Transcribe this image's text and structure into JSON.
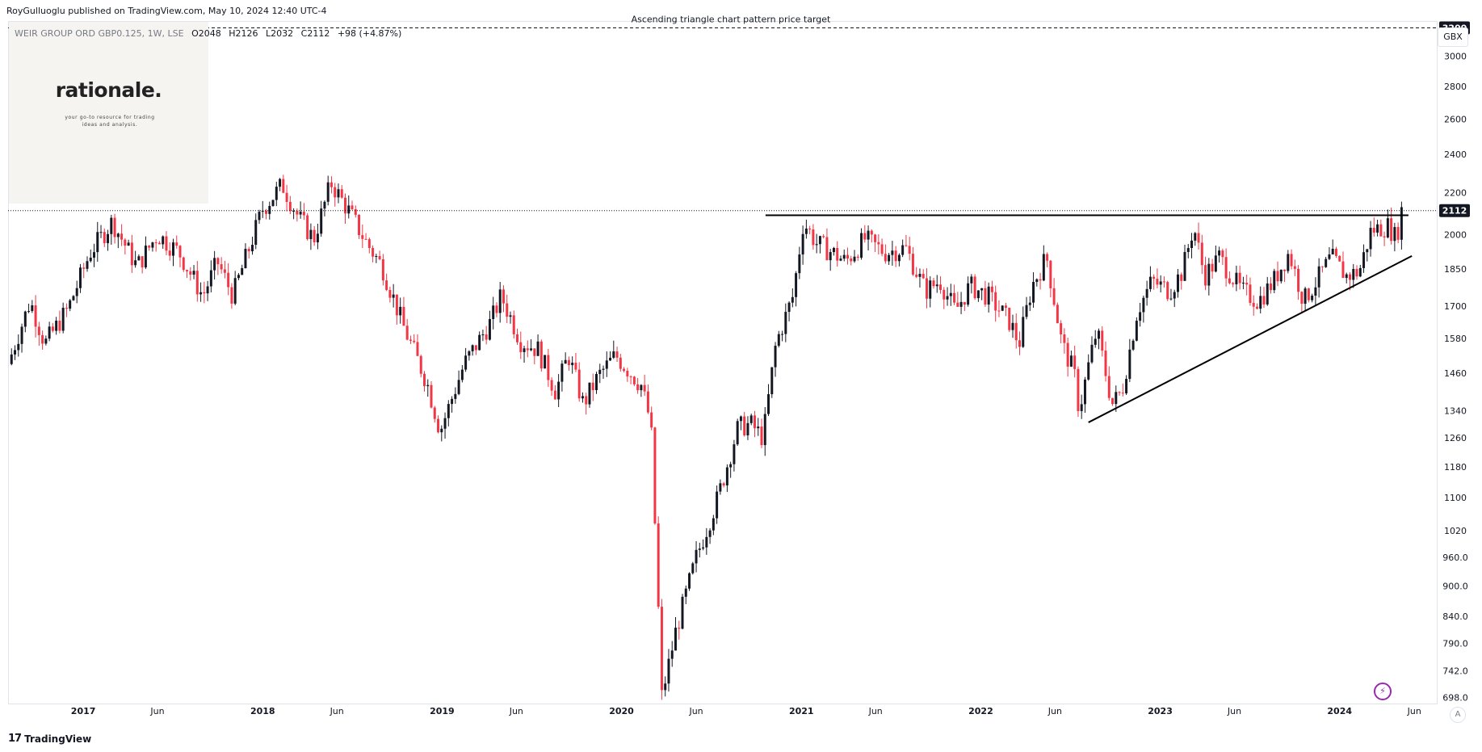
{
  "header": {
    "published_by": "RoyGulluoglu published on TradingView.com, May 10, 2024 12:40 UTC-4"
  },
  "symbol": {
    "name": "WEIR GROUP ORD GBP0.125, 1W, LSE",
    "open": "O2048",
    "high": "H2126",
    "low": "L2032",
    "close": "C2112",
    "change": "+98 (+4.87%)"
  },
  "logo": {
    "word": "rationale.",
    "tagline": "your go-to resource for trading ideas and analysis."
  },
  "currency": "GBX",
  "footer": {
    "brand": "TradingView",
    "mark": "17"
  },
  "auto_label": "A",
  "flash_icon": "lightning-icon",
  "colors": {
    "up": "#131722",
    "down": "#f23645",
    "line": "#000000",
    "label_bg": "#131722"
  },
  "chart_data": {
    "type": "candlestick",
    "interval": "1W",
    "scale": "log",
    "ylim": [
      690,
      3250
    ],
    "y_ticks": [
      3000,
      2800,
      2600,
      2400,
      2200,
      2000,
      1850,
      1700,
      1580,
      1460,
      1340,
      1260,
      1180,
      1100,
      1020,
      960,
      900,
      840,
      790,
      742,
      698
    ],
    "y_tick_labels": [
      "3000",
      "2800",
      "2600",
      "2400",
      "2200",
      "2000",
      "1850",
      "1700",
      "1580",
      "1460",
      "1340",
      "1260",
      "1180",
      "1100",
      "1020",
      "960.0",
      "900.0",
      "840.0",
      "790.0",
      "742.0",
      "698.0"
    ],
    "x_ticks": [
      {
        "date": "2017-01-01",
        "label": "2017",
        "bold": true
      },
      {
        "date": "2017-06-01",
        "label": "Jun",
        "bold": false
      },
      {
        "date": "2018-01-01",
        "label": "2018",
        "bold": true
      },
      {
        "date": "2018-06-01",
        "label": "Jun",
        "bold": false
      },
      {
        "date": "2019-01-01",
        "label": "2019",
        "bold": true
      },
      {
        "date": "2019-06-01",
        "label": "Jun",
        "bold": false
      },
      {
        "date": "2020-01-01",
        "label": "2020",
        "bold": true
      },
      {
        "date": "2020-06-01",
        "label": "Jun",
        "bold": false
      },
      {
        "date": "2021-01-01",
        "label": "2021",
        "bold": true
      },
      {
        "date": "2021-06-01",
        "label": "Jun",
        "bold": false
      },
      {
        "date": "2022-01-01",
        "label": "2022",
        "bold": true
      },
      {
        "date": "2022-06-01",
        "label": "Jun",
        "bold": false
      },
      {
        "date": "2023-01-01",
        "label": "2023",
        "bold": true
      },
      {
        "date": "2023-06-01",
        "label": "Jun",
        "bold": false
      },
      {
        "date": "2024-01-01",
        "label": "2024",
        "bold": true
      },
      {
        "date": "2024-06-01",
        "label": "Jun",
        "bold": false
      }
    ],
    "xlim": [
      "2016-08-01",
      "2024-07-15"
    ],
    "last_price": 2112,
    "last_price_label": "2112",
    "price_target": 3200,
    "price_target_label": "3200",
    "price_target_annotation": "Ascending triangle chart pattern price target",
    "resistance": {
      "start": "2020-10-20",
      "end": "2024-05-20",
      "price": 2090
    },
    "trendline": {
      "start": [
        "2022-08-08",
        1305
      ],
      "end": [
        "2024-05-27",
        1905
      ]
    },
    "anchors": [
      [
        "2016-08-01",
        1490
      ],
      [
        "2016-09-15",
        1720
      ],
      [
        "2016-10-15",
        1560
      ],
      [
        "2016-12-01",
        1690
      ],
      [
        "2017-01-15",
        1920
      ],
      [
        "2017-03-01",
        2060
      ],
      [
        "2017-04-20",
        1860
      ],
      [
        "2017-06-01",
        2000
      ],
      [
        "2017-07-15",
        1920
      ],
      [
        "2017-09-01",
        1740
      ],
      [
        "2017-10-01",
        1880
      ],
      [
        "2017-11-01",
        1740
      ],
      [
        "2018-01-01",
        2120
      ],
      [
        "2018-02-10",
        2240
      ],
      [
        "2018-03-15",
        2080
      ],
      [
        "2018-04-15",
        1980
      ],
      [
        "2018-05-20",
        2250
      ],
      [
        "2018-06-25",
        2110
      ],
      [
        "2018-08-01",
        1960
      ],
      [
        "2018-09-01",
        1860
      ],
      [
        "2018-10-15",
        1620
      ],
      [
        "2018-12-01",
        1430
      ],
      [
        "2018-12-28",
        1280
      ],
      [
        "2019-02-15",
        1490
      ],
      [
        "2019-04-10",
        1640
      ],
      [
        "2019-05-01",
        1740
      ],
      [
        "2019-06-10",
        1570
      ],
      [
        "2019-07-15",
        1540
      ],
      [
        "2019-08-20",
        1400
      ],
      [
        "2019-09-15",
        1520
      ],
      [
        "2019-10-15",
        1360
      ],
      [
        "2019-11-15",
        1450
      ],
      [
        "2019-12-20",
        1520
      ],
      [
        "2020-02-10",
        1420
      ],
      [
        "2020-03-01",
        1300
      ],
      [
        "2020-03-23",
        700
      ],
      [
        "2020-04-20",
        810
      ],
      [
        "2020-06-01",
        960
      ],
      [
        "2020-07-15",
        1100
      ],
      [
        "2020-08-25",
        1290
      ],
      [
        "2020-09-20",
        1300
      ],
      [
        "2020-10-15",
        1260
      ],
      [
        "2020-11-10",
        1560
      ],
      [
        "2020-12-15",
        1740
      ],
      [
        "2021-01-05",
        2060
      ],
      [
        "2021-02-01",
        1960
      ],
      [
        "2021-03-05",
        1920
      ],
      [
        "2021-04-01",
        1880
      ],
      [
        "2021-05-10",
        1980
      ],
      [
        "2021-06-20",
        1920
      ],
      [
        "2021-08-01",
        1940
      ],
      [
        "2021-09-10",
        1760
      ],
      [
        "2021-10-10",
        1800
      ],
      [
        "2021-11-10",
        1680
      ],
      [
        "2021-12-10",
        1780
      ],
      [
        "2022-01-15",
        1740
      ],
      [
        "2022-03-01",
        1640
      ],
      [
        "2022-03-20",
        1560
      ],
      [
        "2022-04-15",
        1780
      ],
      [
        "2022-05-15",
        1900
      ],
      [
        "2022-06-15",
        1560
      ],
      [
        "2022-07-10",
        1460
      ],
      [
        "2022-07-20",
        1340
      ],
      [
        "2022-08-10",
        1500
      ],
      [
        "2022-08-25",
        1610
      ],
      [
        "2022-09-25",
        1360
      ],
      [
        "2022-10-15",
        1400
      ],
      [
        "2022-11-15",
        1680
      ],
      [
        "2022-12-15",
        1800
      ],
      [
        "2023-01-20",
        1760
      ],
      [
        "2023-02-15",
        1840
      ],
      [
        "2023-03-10",
        2040
      ],
      [
        "2023-04-01",
        1820
      ],
      [
        "2023-05-01",
        1900
      ],
      [
        "2023-06-15",
        1760
      ],
      [
        "2023-07-20",
        1720
      ],
      [
        "2023-08-20",
        1800
      ],
      [
        "2023-09-20",
        1920
      ],
      [
        "2023-10-20",
        1720
      ],
      [
        "2023-11-15",
        1800
      ],
      [
        "2023-12-15",
        1900
      ],
      [
        "2024-01-15",
        1820
      ],
      [
        "2024-02-10",
        1840
      ],
      [
        "2024-03-05",
        2020
      ],
      [
        "2024-04-10",
        2040
      ],
      [
        "2024-04-25",
        1980
      ],
      [
        "2024-05-06",
        2112
      ]
    ]
  }
}
